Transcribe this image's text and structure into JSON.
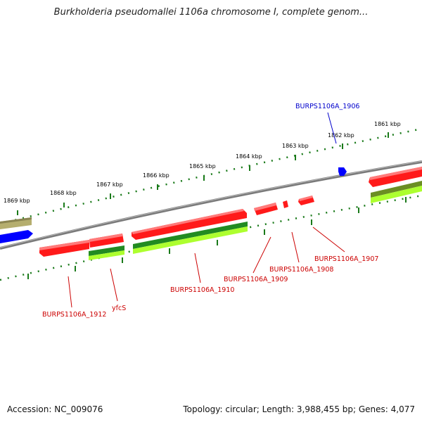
{
  "title": "Burkholderia pseudomallei 1106a chromosome I, complete genom...",
  "footer": {
    "accession": "Accession: NC_009076",
    "summary": "Topology: circular; Length: 3,988,455 bp; Genes: 4,077"
  },
  "kbp_labels": [
    "1869 kbp",
    "1868 kbp",
    "1867 kbp",
    "1866 kbp",
    "1865 kbp",
    "1864 kbp",
    "1863 kbp",
    "1862 kbp",
    "1861 kbp"
  ],
  "gene_labels": [
    {
      "text": "BURPS1106A_1906",
      "color": "#0000cc"
    },
    {
      "text": "BURPS1106A_1907",
      "color": "#cc0000"
    },
    {
      "text": "BURPS1106A_1908",
      "color": "#cc0000"
    },
    {
      "text": "BURPS1106A_1909",
      "color": "#cc0000"
    },
    {
      "text": "BURPS1106A_1910",
      "color": "#cc0000"
    },
    {
      "text": "yfcS",
      "color": "#cc0000"
    },
    {
      "text": "BURPS1106A_1912",
      "color": "#cc0000"
    }
  ],
  "colors": {
    "backbone": "#808080",
    "cds_forward": "#ff0000",
    "cds_reverse": "#0000ff",
    "rna_dark": "#228b22",
    "rna_light": "#adff2f",
    "tick": "#1a7a1a",
    "khaki": "#b5ae6e"
  }
}
